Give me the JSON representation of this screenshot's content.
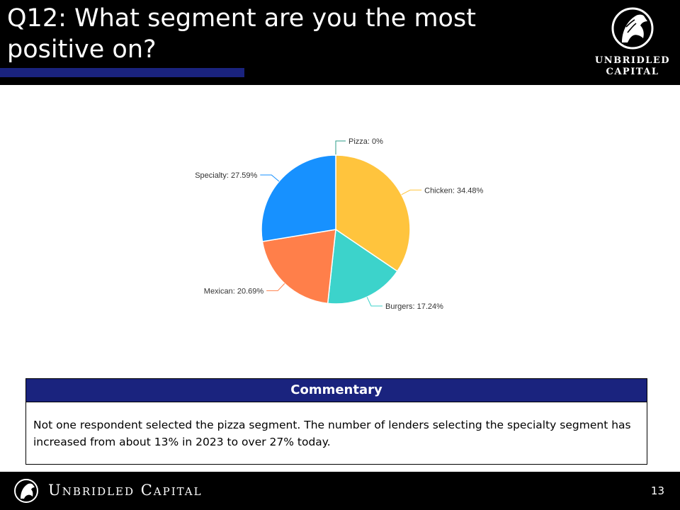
{
  "header": {
    "title": "Q12: What segment are you the most positive on?",
    "brand_line1": "UNBRIDLED",
    "brand_line2": "CAPITAL"
  },
  "chart_data": {
    "type": "pie",
    "categories": [
      "Pizza",
      "Chicken",
      "Burgers",
      "Mexican",
      "Specialty"
    ],
    "values": [
      0,
      34.48,
      17.24,
      20.69,
      27.59
    ],
    "labels": [
      "Pizza: 0%",
      "Chicken: 34.48%",
      "Burgers: 17.24%",
      "Mexican: 20.69%",
      "Specialty: 27.59%"
    ],
    "colors": [
      "#2e9e8a",
      "#ffc43d",
      "#3cd3cb",
      "#ff7f4a",
      "#1791ff"
    ],
    "legend": "none"
  },
  "commentary": {
    "heading": "Commentary",
    "text": "Not one respondent selected the pizza segment. The number of lenders selecting the specialty segment has increased from about 13% in 2023 to over 27% today."
  },
  "footer": {
    "brand": "Unbridled Capital",
    "page_number": "13"
  },
  "icons": [
    "horse-logo-icon"
  ]
}
